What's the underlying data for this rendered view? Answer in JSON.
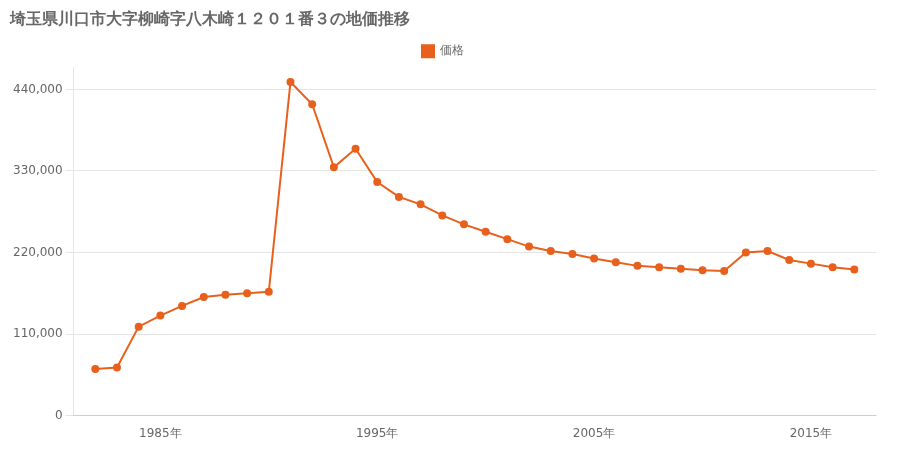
{
  "chart_data": {
    "type": "line",
    "title": "埼玉県川口市大字柳崎字八木崎１２０１番３の地価推移",
    "x": [
      1982,
      1983,
      1984,
      1985,
      1986,
      1987,
      1988,
      1989,
      1990,
      1991,
      1992,
      1993,
      1994,
      1995,
      1996,
      1997,
      1998,
      1999,
      2000,
      2001,
      2002,
      2003,
      2004,
      2005,
      2006,
      2007,
      2008,
      2009,
      2010,
      2011,
      2012,
      2013,
      2014,
      2015,
      2016,
      2017
    ],
    "series": [
      {
        "name": "価格",
        "color": "#E8601C",
        "marker": "circle",
        "values": [
          63000,
          65000,
          120000,
          135000,
          148000,
          160000,
          163000,
          165000,
          167000,
          450000,
          420000,
          335000,
          360000,
          315000,
          295000,
          285000,
          270000,
          258000,
          248000,
          238000,
          228000,
          222000,
          218000,
          212000,
          207000,
          202000,
          200000,
          198000,
          196000,
          195000,
          220000,
          222000,
          210000,
          205000,
          200000,
          197000
        ]
      }
    ],
    "xlim": [
      1981,
      2018
    ],
    "xticks": [
      {
        "value": 1985,
        "label": "1985年"
      },
      {
        "value": 1995,
        "label": "1995年"
      },
      {
        "value": 2005,
        "label": "2005年"
      },
      {
        "value": 2015,
        "label": "2015年"
      }
    ],
    "ylim": [
      0,
      470000
    ],
    "yticks": [
      0,
      {
        "value": 110000,
        "label": "110,000"
      },
      {
        "value": 220000,
        "label": "220,000"
      },
      {
        "value": 330000,
        "label": "330,000"
      },
      {
        "value": 440000,
        "label": "440,000"
      }
    ],
    "grid": "y",
    "legend": "top"
  }
}
